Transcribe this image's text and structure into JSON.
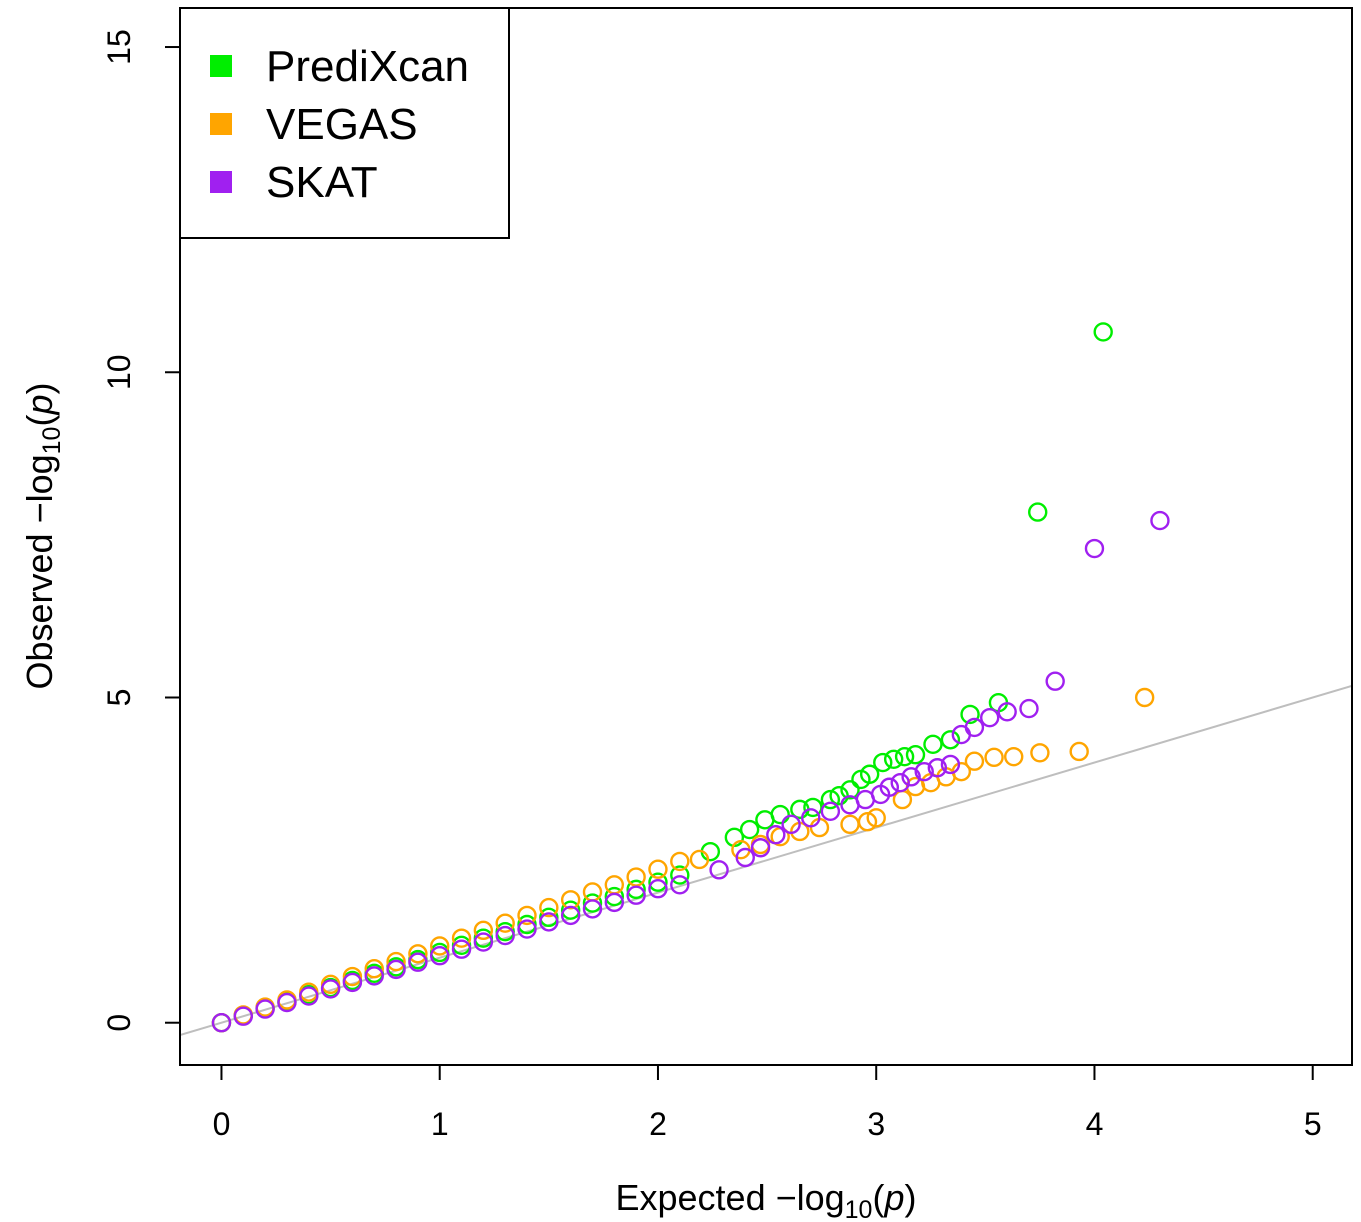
{
  "chart_data": {
    "type": "scatter",
    "xlabel": [
      "Expected  −log",
      "10",
      "(",
      "p",
      ")"
    ],
    "ylabel": [
      "Observed  −log",
      "10",
      "(",
      "p",
      ")"
    ],
    "xlim": [
      -0.19,
      5.18
    ],
    "ylim": [
      -0.65,
      15.6
    ],
    "xticks": [
      0,
      1,
      2,
      3,
      4,
      5
    ],
    "yticks": [
      0,
      5,
      10,
      15
    ],
    "reference_line": {
      "intercept": 0,
      "slope": 1,
      "color": "#bebebe"
    },
    "legend": "top-left",
    "series": [
      {
        "name": "PrediXcan",
        "color": "#00ee00",
        "x": [
          0,
          0.1,
          0.2,
          0.3,
          0.4,
          0.5,
          0.6,
          0.7,
          0.8,
          0.9,
          1,
          1.1,
          1.2,
          1.3,
          1.4,
          1.5,
          1.6,
          1.7,
          1.8,
          1.9,
          2,
          2.1,
          2.24,
          2.35,
          2.42,
          2.49,
          2.56,
          2.65,
          2.71,
          2.79,
          2.83,
          2.88,
          2.93,
          2.97,
          3.03,
          3.08,
          3.13,
          3.18,
          3.26,
          3.34,
          3.43,
          3.56,
          3.74,
          4.04
        ],
        "values": [
          0,
          0.11,
          0.22,
          0.32,
          0.43,
          0.54,
          0.65,
          0.76,
          0.86,
          0.97,
          1.08,
          1.19,
          1.3,
          1.4,
          1.51,
          1.62,
          1.73,
          1.84,
          1.94,
          2.05,
          2.16,
          2.27,
          2.63,
          2.85,
          2.97,
          3.12,
          3.2,
          3.28,
          3.31,
          3.43,
          3.49,
          3.58,
          3.74,
          3.82,
          4,
          4.05,
          4.09,
          4.12,
          4.28,
          4.35,
          4.74,
          4.92,
          7.85,
          10.62
        ]
      },
      {
        "name": "VEGAS",
        "color": "#ffa500",
        "x": [
          0,
          0.1,
          0.2,
          0.3,
          0.4,
          0.5,
          0.6,
          0.7,
          0.8,
          0.9,
          1,
          1.1,
          1.2,
          1.3,
          1.4,
          1.5,
          1.6,
          1.7,
          1.8,
          1.9,
          2,
          2.1,
          2.19,
          2.38,
          2.47,
          2.56,
          2.65,
          2.74,
          2.88,
          2.96,
          3,
          3.12,
          3.18,
          3.25,
          3.32,
          3.39,
          3.45,
          3.54,
          3.63,
          3.75,
          3.93,
          4.23
        ],
        "values": [
          0,
          0.12,
          0.24,
          0.35,
          0.47,
          0.59,
          0.71,
          0.83,
          0.94,
          1.06,
          1.18,
          1.3,
          1.42,
          1.53,
          1.65,
          1.77,
          1.89,
          2.01,
          2.12,
          2.24,
          2.36,
          2.48,
          2.51,
          2.66,
          2.74,
          2.86,
          2.94,
          3,
          3.05,
          3.09,
          3.15,
          3.43,
          3.63,
          3.69,
          3.78,
          3.86,
          4.02,
          4.08,
          4.09,
          4.15,
          4.17,
          5
        ]
      },
      {
        "name": "SKAT",
        "color": "#a020f0",
        "x": [
          0,
          0.1,
          0.2,
          0.3,
          0.4,
          0.5,
          0.6,
          0.7,
          0.8,
          0.9,
          1,
          1.1,
          1.2,
          1.3,
          1.4,
          1.5,
          1.6,
          1.7,
          1.8,
          1.9,
          2,
          2.1,
          2.28,
          2.4,
          2.47,
          2.54,
          2.61,
          2.7,
          2.79,
          2.88,
          2.95,
          3.02,
          3.06,
          3.11,
          3.16,
          3.22,
          3.28,
          3.34,
          3.39,
          3.45,
          3.52,
          3.6,
          3.7,
          3.82,
          4,
          4.3
        ],
        "values": [
          0,
          0.1,
          0.21,
          0.31,
          0.41,
          0.52,
          0.62,
          0.72,
          0.82,
          0.93,
          1.03,
          1.13,
          1.24,
          1.34,
          1.44,
          1.55,
          1.65,
          1.75,
          1.85,
          1.96,
          2.06,
          2.12,
          2.35,
          2.54,
          2.69,
          2.89,
          3.05,
          3.15,
          3.25,
          3.35,
          3.43,
          3.51,
          3.62,
          3.69,
          3.78,
          3.86,
          3.92,
          3.97,
          4.43,
          4.54,
          4.69,
          4.78,
          4.83,
          5.25,
          7.29,
          7.72
        ]
      }
    ]
  }
}
